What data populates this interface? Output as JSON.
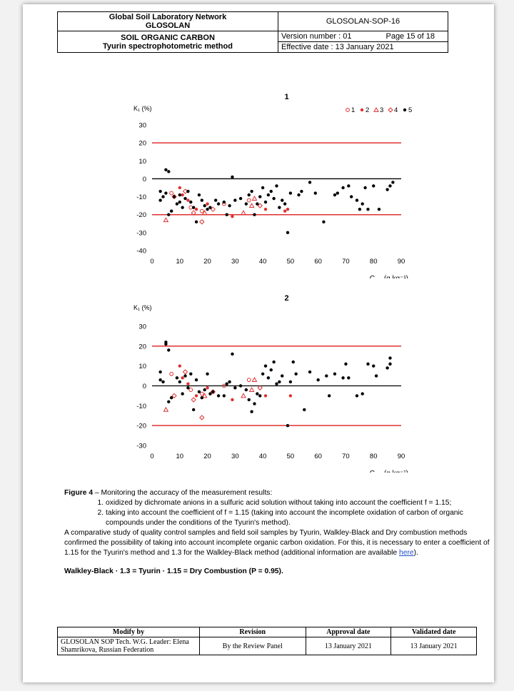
{
  "header": {
    "org_line1": "Global Soil Laboratory Network",
    "org_line2": "GLOSOLAN",
    "sop_code": "GLOSOLAN-SOP-16",
    "title_line1": "SOIL ORGANIC CARBON",
    "title_line2": "Tyurin spectrophotometric method",
    "version": "Version number : 01",
    "page": "Page 15 of 18",
    "effective": "Effective date : 13 January 2021"
  },
  "chart_data": [
    {
      "type": "scatter",
      "title": "1",
      "ylabel": "K₁ (%)",
      "xlabel": "Corg (g kg⁻¹)",
      "xlim": [
        0,
        90
      ],
      "ylim": [
        -40,
        30
      ],
      "xticks": [
        0,
        10,
        20,
        30,
        40,
        50,
        60,
        70,
        80,
        90
      ],
      "yticks": [
        30,
        20,
        10,
        0,
        -10,
        -20,
        -30,
        -40
      ],
      "grid": false,
      "legend_position": "top-right",
      "legend": [
        "1",
        "2",
        "3",
        "4",
        "5"
      ],
      "reference_lines": [
        {
          "y": 20,
          "color": "#e03030"
        },
        {
          "y": 0,
          "color": "#000000"
        },
        {
          "y": -20,
          "color": "#e03030"
        }
      ],
      "series": [
        {
          "name": "1",
          "marker": "open-circle",
          "color": "#e03030",
          "points": [
            [
              7,
              -8
            ],
            [
              14,
              -16
            ],
            [
              18,
              -18
            ],
            [
              26,
              -14
            ],
            [
              35,
              -12
            ]
          ]
        },
        {
          "name": "2",
          "marker": "filled-circle",
          "color": "#e03030",
          "points": [
            [
              10,
              -5
            ],
            [
              11,
              -9
            ],
            [
              13,
              -12
            ],
            [
              16,
              -17
            ],
            [
              20,
              -14
            ],
            [
              29,
              -21
            ],
            [
              41,
              -17
            ],
            [
              48,
              -18
            ],
            [
              49,
              -17
            ]
          ]
        },
        {
          "name": "3",
          "marker": "open-triangle",
          "color": "#e03030",
          "points": [
            [
              5,
              -23
            ],
            [
              19,
              -19
            ],
            [
              33,
              -19
            ],
            [
              36,
              -15
            ],
            [
              37,
              -11
            ]
          ]
        },
        {
          "name": "4",
          "marker": "open-diamond",
          "color": "#e03030",
          "points": [
            [
              8,
              -10
            ],
            [
              12,
              -7
            ],
            [
              15,
              -19
            ],
            [
              18,
              -24
            ],
            [
              22,
              -17
            ],
            [
              39,
              -15
            ]
          ]
        },
        {
          "name": "5",
          "marker": "filled-circle",
          "color": "#000000",
          "points": [
            [
              3,
              -7
            ],
            [
              3,
              -12
            ],
            [
              4,
              -10
            ],
            [
              5,
              -8
            ],
            [
              5,
              5
            ],
            [
              6,
              4
            ],
            [
              6,
              -20
            ],
            [
              7,
              -18
            ],
            [
              8,
              -10
            ],
            [
              9,
              -14
            ],
            [
              10,
              -9
            ],
            [
              10,
              -13
            ],
            [
              11,
              -16
            ],
            [
              12,
              -11
            ],
            [
              13,
              -7
            ],
            [
              14,
              -13
            ],
            [
              15,
              -16
            ],
            [
              16,
              -24
            ],
            [
              17,
              -9
            ],
            [
              18,
              -12
            ],
            [
              19,
              -15
            ],
            [
              20,
              -17
            ],
            [
              21,
              -16
            ],
            [
              23,
              -12
            ],
            [
              24,
              -14
            ],
            [
              26,
              -13
            ],
            [
              27,
              -20
            ],
            [
              28,
              -15
            ],
            [
              29,
              1
            ],
            [
              30,
              -12
            ],
            [
              32,
              -11
            ],
            [
              34,
              -14
            ],
            [
              35,
              -9
            ],
            [
              36,
              -7
            ],
            [
              37,
              -20
            ],
            [
              38,
              -14
            ],
            [
              39,
              -10
            ],
            [
              40,
              -5
            ],
            [
              41,
              -13
            ],
            [
              42,
              -9
            ],
            [
              43,
              -7
            ],
            [
              44,
              -11
            ],
            [
              45,
              -4
            ],
            [
              46,
              -16
            ],
            [
              47,
              -12
            ],
            [
              48,
              -14
            ],
            [
              49,
              -30
            ],
            [
              50,
              -8
            ],
            [
              53,
              -9
            ],
            [
              54,
              -7
            ],
            [
              57,
              -2
            ],
            [
              59,
              -8
            ],
            [
              62,
              -24
            ],
            [
              66,
              -9
            ],
            [
              67,
              -8
            ],
            [
              69,
              -5
            ],
            [
              71,
              -4
            ],
            [
              72,
              -10
            ],
            [
              74,
              -12
            ],
            [
              75,
              -17
            ],
            [
              76,
              -14
            ],
            [
              77,
              -5
            ],
            [
              78,
              -17
            ],
            [
              80,
              -4
            ],
            [
              82,
              -17
            ],
            [
              85,
              -6
            ],
            [
              86,
              -4
            ],
            [
              87,
              -2
            ]
          ]
        }
      ]
    },
    {
      "type": "scatter",
      "title": "2",
      "ylabel": "K₁ (%)",
      "xlabel": "Corg (g kg⁻¹)",
      "xlim": [
        0,
        90
      ],
      "ylim": [
        -30,
        30
      ],
      "xticks": [
        0,
        10,
        20,
        30,
        40,
        50,
        60,
        70,
        80,
        90
      ],
      "yticks": [
        30,
        20,
        10,
        0,
        -10,
        -20,
        -30
      ],
      "grid": false,
      "reference_lines": [
        {
          "y": 20,
          "color": "#e03030"
        },
        {
          "y": 0,
          "color": "#000000"
        },
        {
          "y": -20,
          "color": "#e03030"
        }
      ],
      "series": [
        {
          "name": "1",
          "marker": "open-circle",
          "color": "#e03030",
          "points": [
            [
              7,
              6
            ],
            [
              14,
              -2
            ],
            [
              18,
              -4
            ],
            [
              26,
              0
            ],
            [
              35,
              3
            ]
          ]
        },
        {
          "name": "2",
          "marker": "filled-circle",
          "color": "#e03030",
          "points": [
            [
              10,
              10
            ],
            [
              11,
              4
            ],
            [
              13,
              1
            ],
            [
              16,
              -5
            ],
            [
              20,
              -1
            ],
            [
              29,
              -7
            ],
            [
              41,
              -5
            ],
            [
              50,
              -5
            ]
          ]
        },
        {
          "name": "3",
          "marker": "open-triangle",
          "color": "#e03030",
          "points": [
            [
              5,
              -12
            ],
            [
              19,
              -5
            ],
            [
              33,
              -5
            ],
            [
              36,
              -2
            ],
            [
              37,
              3
            ]
          ]
        },
        {
          "name": "4",
          "marker": "open-diamond",
          "color": "#e03030",
          "points": [
            [
              8,
              -5
            ],
            [
              12,
              7
            ],
            [
              15,
              -7
            ],
            [
              18,
              -16
            ],
            [
              22,
              -3
            ],
            [
              39,
              -1
            ]
          ]
        },
        {
          "name": "5",
          "marker": "filled-circle",
          "color": "#000000",
          "points": [
            [
              3,
              7
            ],
            [
              3,
              3
            ],
            [
              4,
              2
            ],
            [
              5,
              22
            ],
            [
              5,
              21
            ],
            [
              6,
              18
            ],
            [
              6,
              -8
            ],
            [
              7,
              -6
            ],
            [
              9,
              4
            ],
            [
              10,
              2
            ],
            [
              11,
              -4
            ],
            [
              12,
              5
            ],
            [
              13,
              -1
            ],
            [
              14,
              6
            ],
            [
              15,
              -12
            ],
            [
              16,
              3
            ],
            [
              17,
              -3
            ],
            [
              18,
              -6
            ],
            [
              19,
              -2
            ],
            [
              20,
              6
            ],
            [
              21,
              -4
            ],
            [
              22,
              -3
            ],
            [
              24,
              -5
            ],
            [
              26,
              -5
            ],
            [
              27,
              1
            ],
            [
              28,
              2
            ],
            [
              29,
              16
            ],
            [
              30,
              -1
            ],
            [
              32,
              0
            ],
            [
              34,
              -2
            ],
            [
              35,
              -7
            ],
            [
              36,
              -13
            ],
            [
              37,
              -9
            ],
            [
              38,
              -4
            ],
            [
              39,
              -5
            ],
            [
              40,
              6
            ],
            [
              41,
              10
            ],
            [
              42,
              4
            ],
            [
              43,
              8
            ],
            [
              44,
              12
            ],
            [
              45,
              1
            ],
            [
              46,
              2
            ],
            [
              47,
              5
            ],
            [
              49,
              -20
            ],
            [
              50,
              2
            ],
            [
              51,
              12
            ],
            [
              52,
              6
            ],
            [
              55,
              -12
            ],
            [
              57,
              7
            ],
            [
              60,
              3
            ],
            [
              63,
              5
            ],
            [
              64,
              -5
            ],
            [
              66,
              6
            ],
            [
              69,
              4
            ],
            [
              70,
              11
            ],
            [
              71,
              4
            ],
            [
              74,
              -5
            ],
            [
              76,
              -4
            ],
            [
              78,
              11
            ],
            [
              80,
              10
            ],
            [
              81,
              5
            ],
            [
              85,
              9
            ],
            [
              86,
              11
            ],
            [
              86,
              14
            ]
          ]
        }
      ]
    }
  ],
  "caption": {
    "figure_label": "Figure 4",
    "figure_text": " – Monitoring the accuracy of the measurement results:",
    "item1": "oxidized by dichromate anions in a sulfuric acid solution without taking into account the coefficient f = 1.15;",
    "item2": "taking into account the coefficient of f = 1.15 (taking into account the incomplete oxidation of carbon of organic compounds under the conditions of the Tyurin's method).",
    "paragraph": "A comparative study of quality control samples and field soil samples by Tyurin, Walkley-Black and Dry combustion methods confirmed the possibility of taking into account incomplete organic carbon oxidation. For this, it is necessary to enter a coefficient of 1.15 for the Tyurin's method and 1.3 for the Walkley-Black method (additional information are available ",
    "link_text": "here",
    "paragraph_end": ").",
    "formula": "Walkley-Black · 1.3 = Tyurin · 1.15 = Dry Combustion (P = 0.95)."
  },
  "footer": {
    "col1": "Modify by",
    "col2": "Revision",
    "col3": "Approval date",
    "col4": "Validated date",
    "modify": "GLOSOLAN SOP Tech. W.G. Leader: Elena Shamrikova, Russian Federation",
    "revision": "By the Review Panel",
    "approval": "13 January 2021",
    "validated": "13 January 2021"
  }
}
